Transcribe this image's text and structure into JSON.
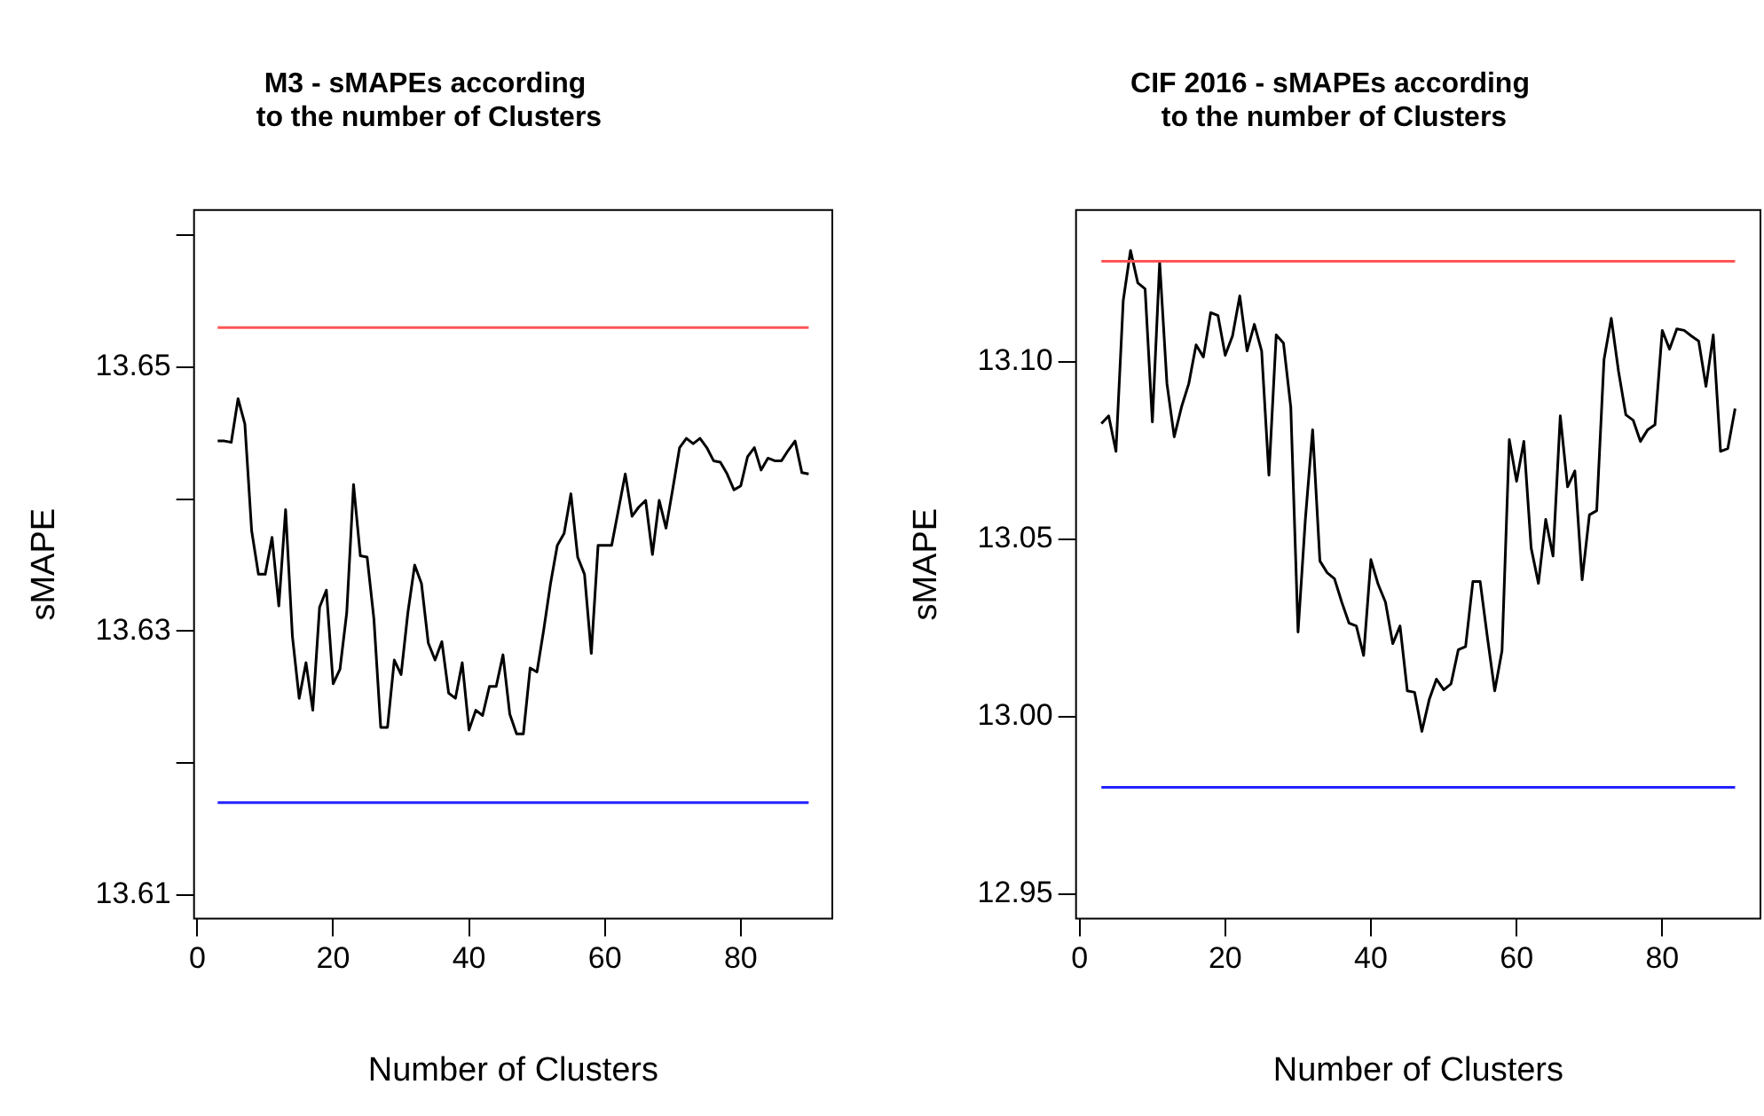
{
  "chart_data": [
    {
      "type": "line",
      "title": "M3 - sMAPEs according\n to the number of Clusters",
      "xlabel": "Number of Clusters",
      "ylabel": "sMAPE",
      "legend": false,
      "grid": false,
      "x": [
        3,
        4,
        5,
        6,
        7,
        8,
        9,
        10,
        11,
        12,
        13,
        14,
        15,
        16,
        17,
        18,
        19,
        20,
        21,
        22,
        23,
        24,
        25,
        26,
        27,
        28,
        29,
        30,
        31,
        32,
        33,
        34,
        35,
        36,
        37,
        38,
        39,
        40,
        41,
        42,
        43,
        44,
        45,
        46,
        47,
        48,
        49,
        50,
        51,
        52,
        53,
        54,
        55,
        56,
        57,
        58,
        59,
        60,
        61,
        62,
        63,
        64,
        65,
        66,
        67,
        68,
        69,
        70,
        71,
        72,
        73,
        74,
        75,
        76,
        77,
        78,
        79,
        80,
        81,
        82,
        83,
        84,
        85,
        86,
        87,
        88,
        89,
        90
      ],
      "series": [
        {
          "color": "#000000",
          "values": [
            13.6444,
            13.6444,
            13.6443,
            13.6476,
            13.6457,
            13.6376,
            13.6343,
            13.6343,
            13.6371,
            13.6319,
            13.6392,
            13.6296,
            13.6249,
            13.6276,
            13.624,
            13.6318,
            13.6331,
            13.626,
            13.6271,
            13.6314,
            13.6411,
            13.6357,
            13.6356,
            13.6309,
            13.6227,
            13.6227,
            13.6278,
            13.6267,
            13.6314,
            13.635,
            13.6336,
            13.6291,
            13.6278,
            13.6292,
            13.6253,
            13.6249,
            13.6276,
            13.6225,
            13.624,
            13.6236,
            13.6258,
            13.6258,
            13.6282,
            13.6237,
            13.6222,
            13.6222,
            13.6272,
            13.6269,
            13.6301,
            13.6336,
            13.6365,
            13.6374,
            13.6404,
            13.6356,
            13.6343,
            13.6283,
            13.6365,
            13.6365,
            13.6365,
            13.6392,
            13.6419,
            13.6387,
            13.6394,
            13.6399,
            13.6358,
            13.6399,
            13.6378,
            13.6408,
            13.6439,
            13.6446,
            13.6442,
            13.6446,
            13.6439,
            13.6429,
            13.6428,
            13.6419,
            13.6407,
            13.641,
            13.6432,
            13.6439,
            13.6422,
            13.6431,
            13.6429,
            13.6429,
            13.6437,
            13.6444,
            13.642,
            13.6419
          ]
        }
      ],
      "ref_lines": [
        {
          "axis": "y",
          "value": 13.653,
          "color": "#ff5555"
        },
        {
          "axis": "y",
          "value": 13.617,
          "color": "#2222ff"
        }
      ],
      "xlim": [
        -0.48,
        93.48
      ],
      "xticks": [
        0,
        20,
        40,
        60,
        80
      ],
      "ylim": [
        13.6082,
        13.6619
      ],
      "yticks": [
        13.61,
        {
          "value": 13.62,
          "label": null
        },
        13.63,
        {
          "value": 13.64,
          "label": null
        },
        13.65,
        {
          "value": 13.66,
          "label": null
        }
      ]
    },
    {
      "type": "line",
      "title": "CIF 2016 - sMAPEs according\n to the number of Clusters",
      "xlabel": "Number of Clusters",
      "ylabel": "sMAPE",
      "legend": false,
      "grid": false,
      "x": [
        3,
        4,
        5,
        6,
        7,
        8,
        9,
        10,
        11,
        12,
        13,
        14,
        15,
        16,
        17,
        18,
        19,
        20,
        21,
        22,
        23,
        24,
        25,
        26,
        27,
        28,
        29,
        30,
        31,
        32,
        33,
        34,
        35,
        36,
        37,
        38,
        39,
        40,
        41,
        42,
        43,
        44,
        45,
        46,
        47,
        48,
        49,
        50,
        51,
        52,
        53,
        54,
        55,
        56,
        57,
        58,
        59,
        60,
        61,
        62,
        63,
        64,
        65,
        66,
        67,
        68,
        69,
        70,
        71,
        72,
        73,
        74,
        75,
        76,
        77,
        78,
        79,
        80,
        81,
        82,
        83,
        84,
        85,
        86,
        87,
        88,
        89,
        90
      ],
      "series": [
        {
          "color": "#000000",
          "values": [
            13.0825,
            13.0847,
            13.0747,
            13.1172,
            13.1313,
            13.1222,
            13.1205,
            13.083,
            13.128,
            13.0938,
            13.0788,
            13.0872,
            13.0938,
            13.1047,
            13.1013,
            13.1138,
            13.113,
            13.1018,
            13.1072,
            13.1185,
            13.103,
            13.1105,
            13.103,
            13.068,
            13.1075,
            13.1052,
            13.0872,
            13.0238,
            13.0555,
            13.0808,
            13.0438,
            13.0405,
            13.0388,
            13.0322,
            13.0263,
            13.0255,
            13.0172,
            13.0442,
            13.0372,
            13.0322,
            13.0205,
            13.0255,
            13.0072,
            13.0068,
            12.9958,
            13.0047,
            13.0105,
            13.0075,
            13.0092,
            13.0188,
            13.0197,
            13.038,
            13.038,
            13.0222,
            13.0072,
            13.0185,
            13.078,
            13.0663,
            13.0775,
            13.0475,
            13.0375,
            13.0555,
            13.0452,
            13.0847,
            13.0647,
            13.0692,
            13.0385,
            13.0568,
            13.058,
            13.1005,
            13.1122,
            13.0972,
            13.085,
            13.0835,
            13.0775,
            13.0808,
            13.0822,
            13.1088,
            13.1035,
            13.1092,
            13.1088,
            13.1072,
            13.1058,
            13.093,
            13.1075,
            13.0747,
            13.0755,
            13.0868
          ]
        }
      ],
      "ref_lines": [
        {
          "axis": "y",
          "value": 13.1283,
          "color": "#ff5555"
        },
        {
          "axis": "y",
          "value": 12.98,
          "color": "#2222ff"
        }
      ],
      "xlim": [
        -0.48,
        93.48
      ],
      "xticks": [
        0,
        20,
        40,
        60,
        80
      ],
      "ylim": [
        12.943,
        13.1427
      ],
      "yticks": [
        {
          "value": 12.95,
          "label": "12.95"
        },
        {
          "value": 13.0,
          "label": "13.00"
        },
        {
          "value": 13.05,
          "label": "13.05"
        },
        {
          "value": 13.1,
          "label": "13.10"
        }
      ]
    }
  ]
}
